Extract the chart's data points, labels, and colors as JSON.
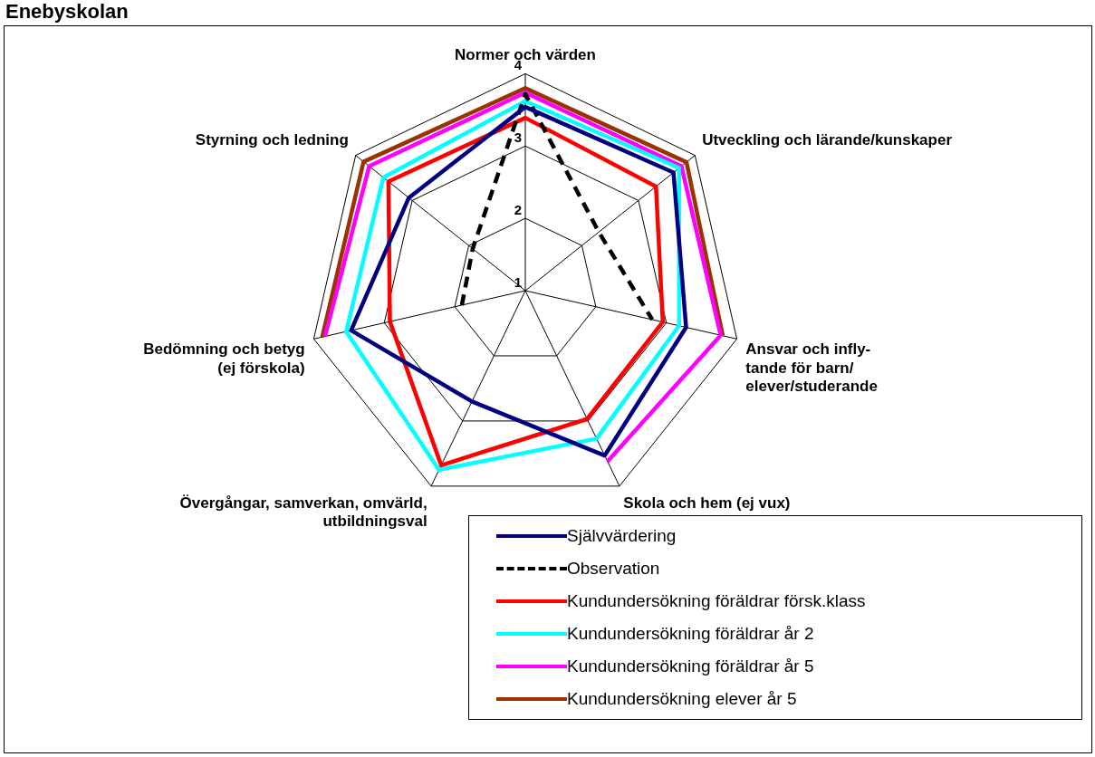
{
  "chart_data": {
    "type": "radar",
    "title": "Enebyskolan",
    "categories": [
      "Normer och värden",
      "Utveckling och lärande/kunskaper",
      "Ansvar och infly-\ntande för barn/\nelever/studerande",
      "Skola och hem (ej vux)",
      "Övergångar, samverkan, omvärld,\nutbildningsval",
      "Bedömning och betyg\n(ej förskola)",
      "Styrning och ledning"
    ],
    "ylim": [
      1,
      4
    ],
    "yticks": [
      1,
      2,
      3,
      4
    ],
    "grid": true,
    "legend": "bottom right",
    "marker": "none",
    "series": [
      {
        "name": "Självvärdering",
        "color": "#000080",
        "values": [
          3.54,
          3.62,
          3.28,
          3.53,
          2.7,
          3.47,
          3.06
        ]
      },
      {
        "name": "Observation",
        "color": "#000000",
        "line_style": "dashed",
        "values": [
          3.72,
          2.3,
          2.8,
          null,
          null,
          1.9,
          1.93
        ]
      },
      {
        "name": "Kundundersökning föräldrar försk.klass",
        "color": "#ff0000",
        "values": [
          3.39,
          3.31,
          2.95,
          2.97,
          3.68,
          2.92,
          3.42
        ]
      },
      {
        "name": "Kundundersökning föräldrar år 2",
        "color": "#00ffff",
        "values": [
          3.62,
          3.72,
          3.18,
          3.27,
          3.75,
          3.54,
          3.51
        ]
      },
      {
        "name": "Kundundersökning föräldrar år 5",
        "color": "#ff00ff",
        "values": [
          3.74,
          3.76,
          3.77,
          3.62,
          null,
          3.84,
          3.76
        ]
      },
      {
        "name": "Kundundersökning elever år 5",
        "color": "#993300",
        "values": [
          3.8,
          3.85,
          3.8,
          null,
          null,
          3.88,
          3.86
        ]
      }
    ]
  }
}
